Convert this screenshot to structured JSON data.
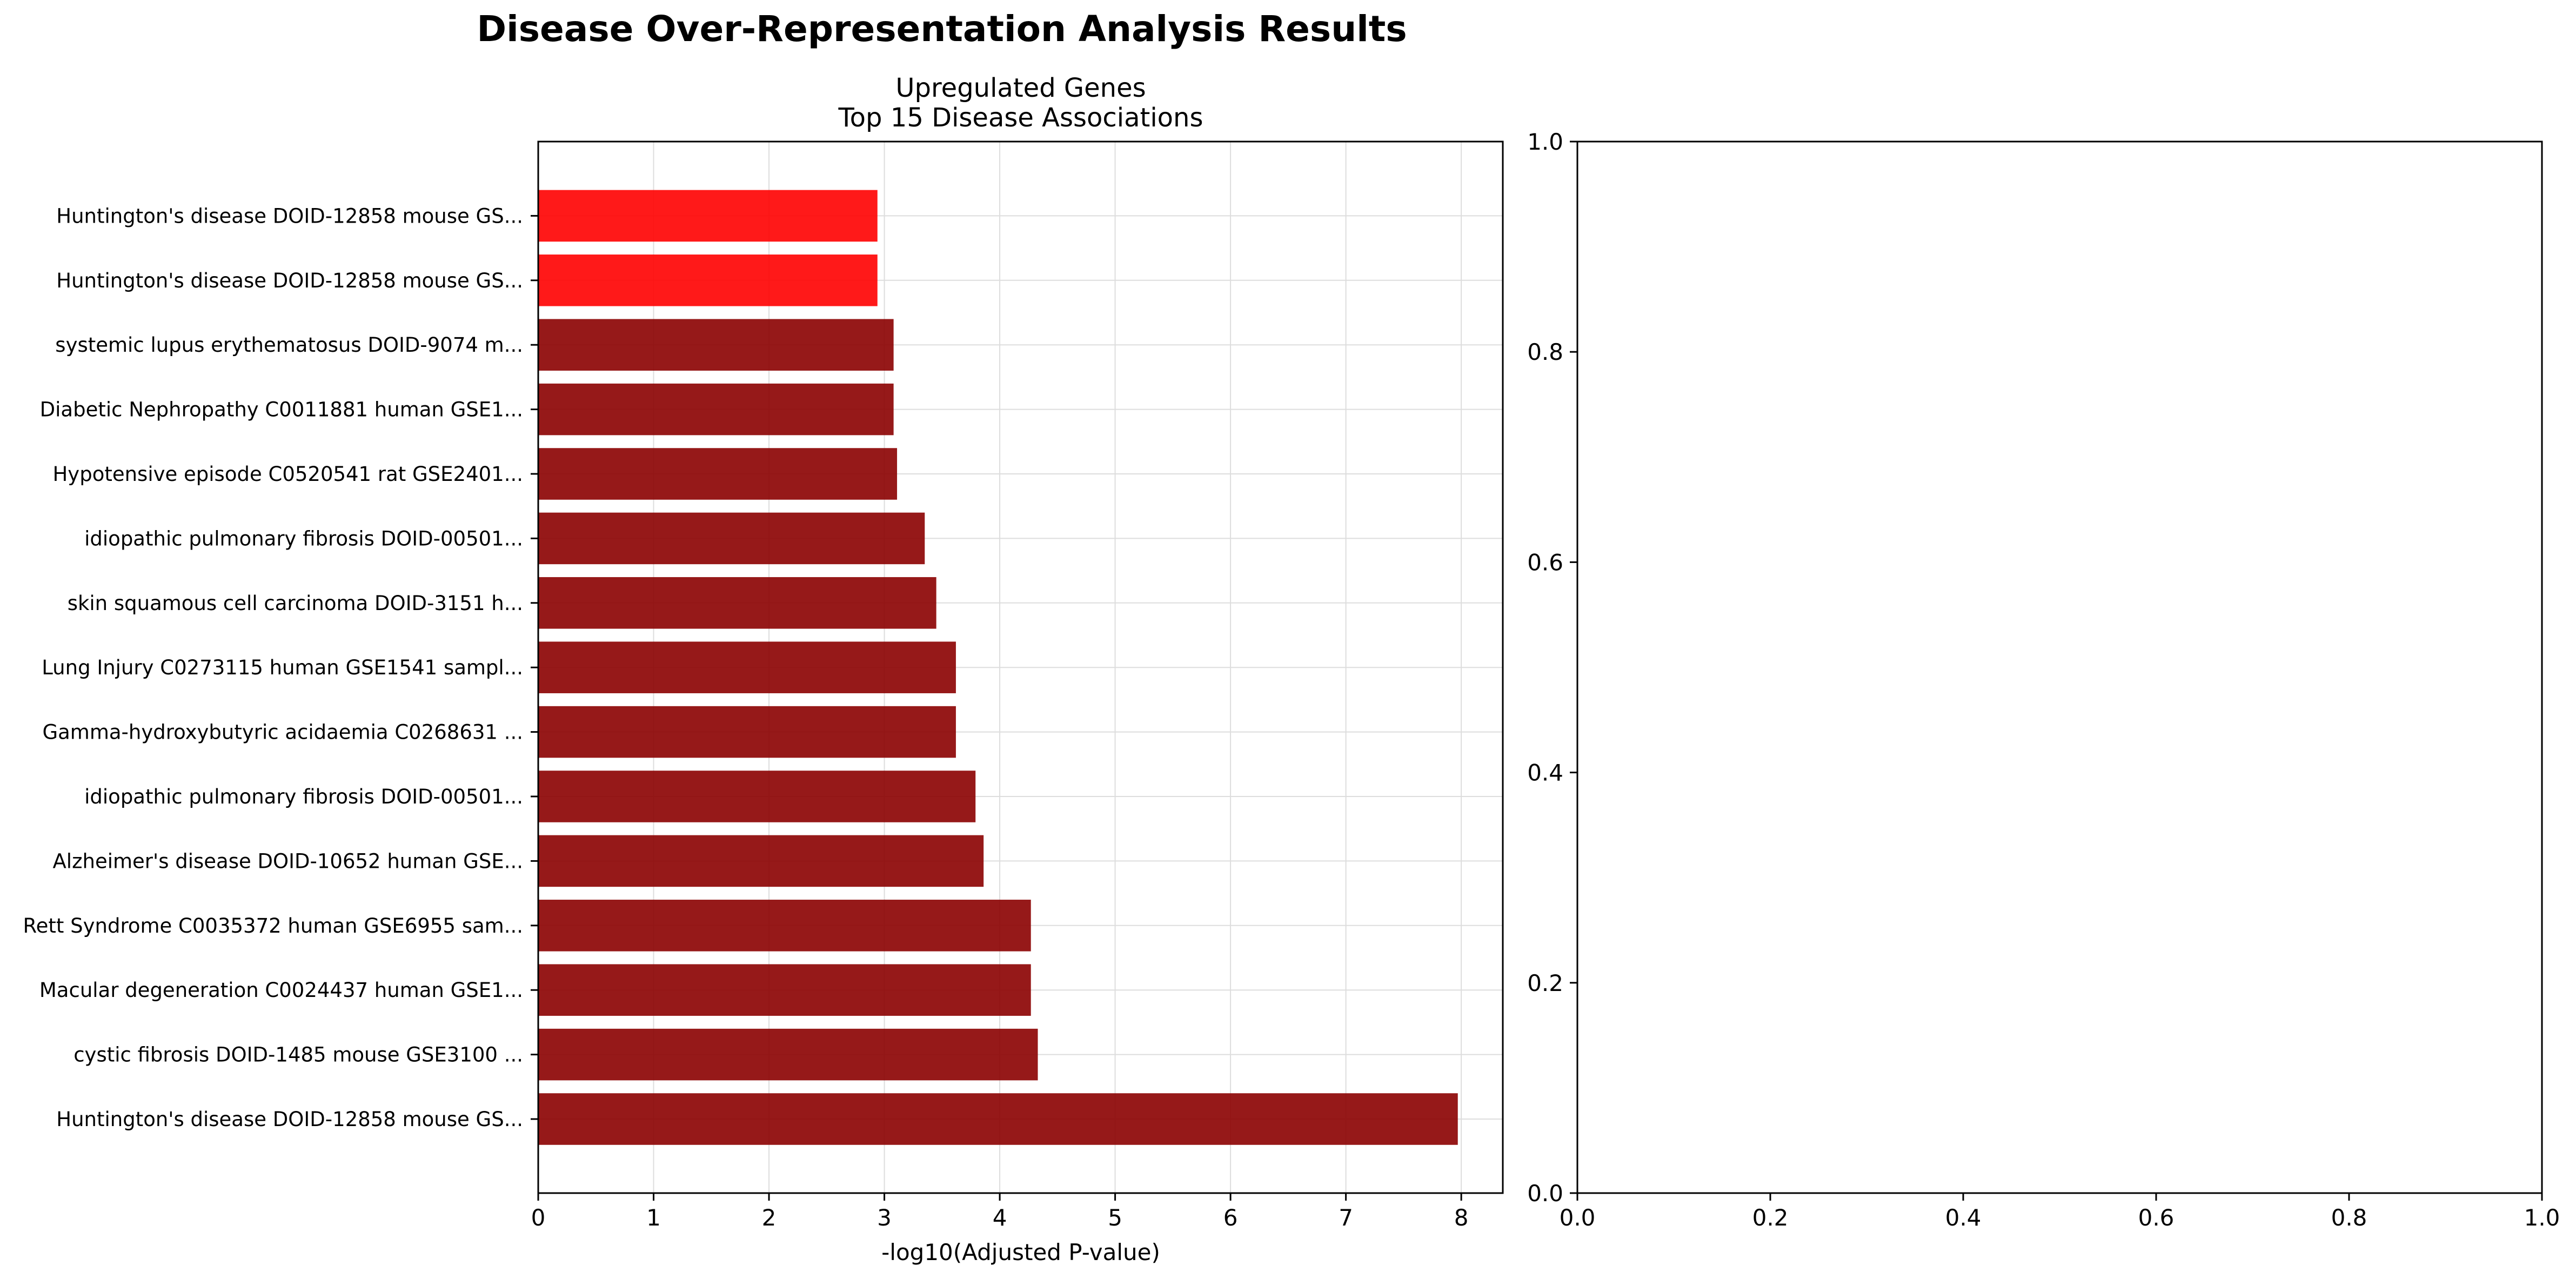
{
  "figure": {
    "title": "Disease Over-Representation Analysis Results"
  },
  "colors": {
    "bar_default": "#8b0000",
    "bar_highlight": "#ff0000",
    "grid": "#dddddd",
    "axis": "#000000"
  },
  "chart_data": [
    {
      "type": "bar",
      "orientation": "horizontal",
      "title": "Upregulated Genes",
      "subtitle": "Top 15 Disease Associations",
      "xlabel": "-log10(Adjusted P-value)",
      "ylabel": "",
      "xlim": [
        0,
        8.36
      ],
      "xticks": [
        0,
        1,
        2,
        3,
        4,
        5,
        6,
        7,
        8
      ],
      "grid": true,
      "categories": [
        "Huntington's disease DOID-12858 mouse GS...",
        "cystic fibrosis DOID-1485 mouse GSE3100 ...",
        "Macular degeneration C0024437 human GSE1...",
        "Rett Syndrome C0035372 human GSE6955 sam...",
        "Alzheimer's disease DOID-10652 human GSE...",
        "idiopathic pulmonary fibrosis DOID-00501...",
        "Gamma-hydroxybutyric acidaemia C0268631 ...",
        "Lung Injury C0273115 human GSE1541 sampl...",
        "skin squamous cell carcinoma DOID-3151 h...",
        "idiopathic pulmonary fibrosis DOID-00501...",
        "Hypotensive episode C0520541 rat GSE2401...",
        "Diabetic Nephropathy C0011881 human GSE1...",
        "systemic lupus erythematosus DOID-9074 m...",
        "Huntington's disease DOID-12858 mouse GS...",
        "Huntington's disease DOID-12858 mouse GS..."
      ],
      "values": [
        7.97,
        4.33,
        4.27,
        4.27,
        3.86,
        3.79,
        3.62,
        3.62,
        3.45,
        3.35,
        3.11,
        3.08,
        3.08,
        2.94,
        2.94
      ],
      "highlighted": [
        false,
        false,
        false,
        false,
        false,
        false,
        false,
        false,
        false,
        false,
        false,
        false,
        false,
        true,
        true
      ]
    },
    {
      "type": "empty",
      "xlim": [
        0,
        1
      ],
      "ylim": [
        0,
        1
      ],
      "xticks": [
        0.0,
        0.2,
        0.4,
        0.6,
        0.8,
        1.0
      ],
      "yticks": [
        0.0,
        0.2,
        0.4,
        0.6,
        0.8,
        1.0
      ],
      "xtick_labels": [
        "0.0",
        "0.2",
        "0.4",
        "0.6",
        "0.8",
        "1.0"
      ],
      "ytick_labels": [
        "0.0",
        "0.2",
        "0.4",
        "0.6",
        "0.8",
        "1.0"
      ]
    }
  ]
}
